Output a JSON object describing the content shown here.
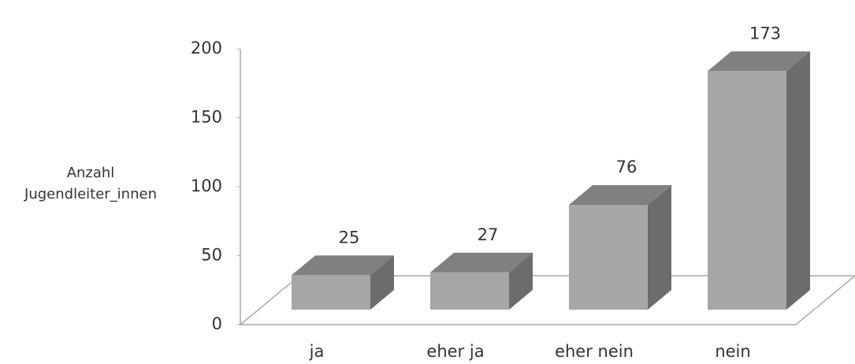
{
  "chart_data": {
    "type": "bar3d",
    "y_label": "Anzahl Jugendleiter_innen",
    "categories": [
      "ja",
      "eher ja",
      "eher nein",
      "nein"
    ],
    "values": [
      25,
      27,
      76,
      173
    ],
    "color": "#a6a6a8",
    "ylim": [
      0,
      200
    ],
    "yticks": [
      0,
      50,
      100,
      150,
      200
    ]
  }
}
